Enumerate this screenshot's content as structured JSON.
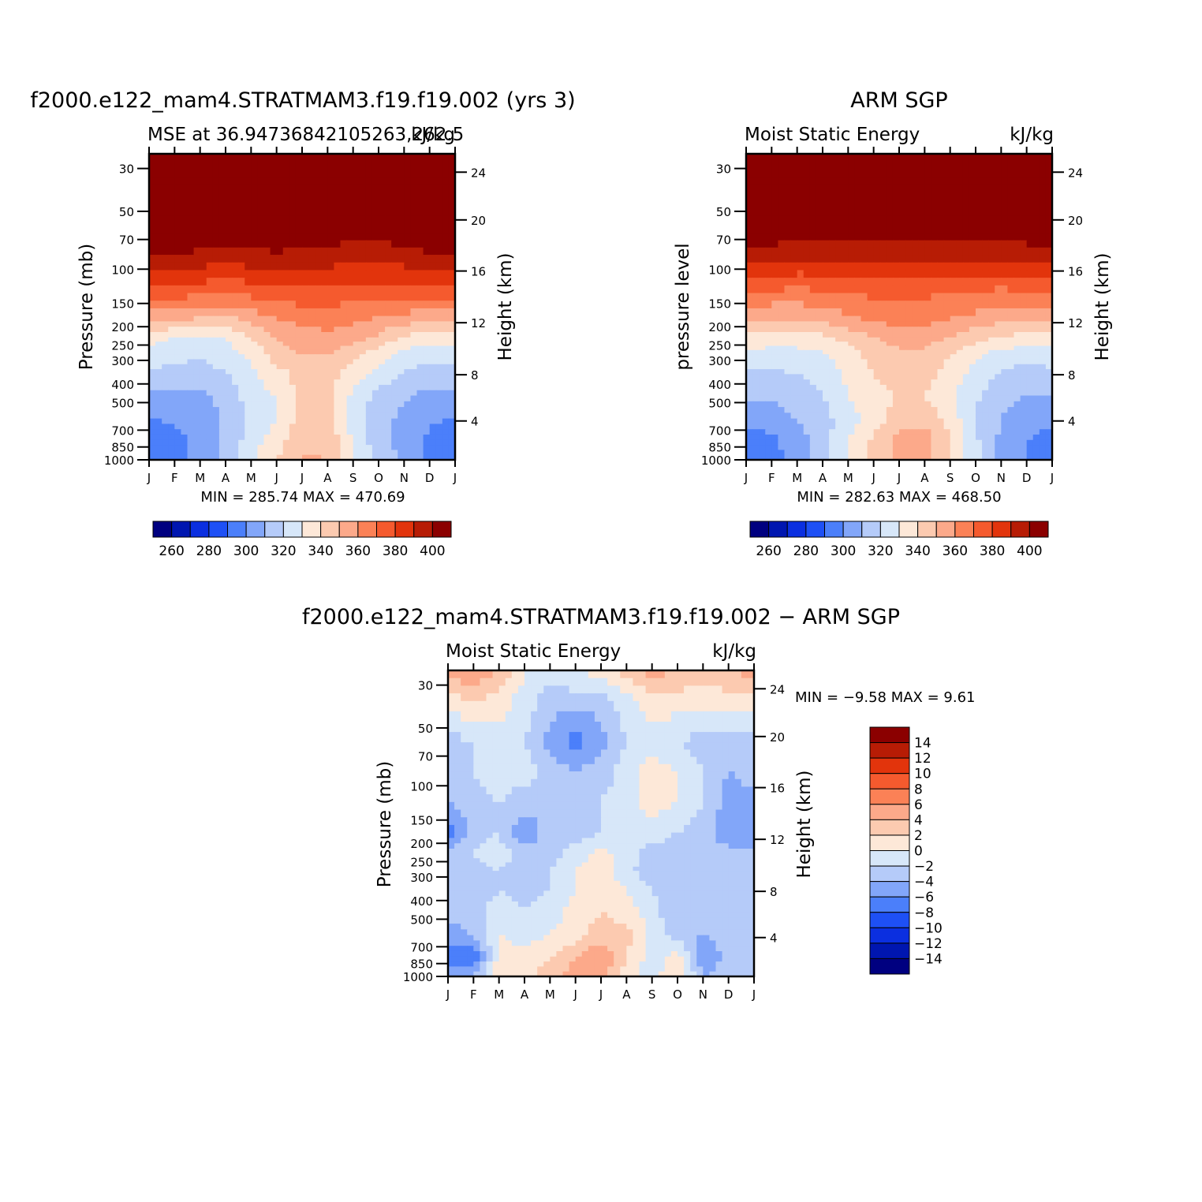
{
  "chart_data": [
    {
      "type": "heatmap",
      "title": "f2000.e122_mam4.STRATMAM3.f19.f19.002 (yrs 3)",
      "subtitle_left": "MSE at 36.94736842105263,262.5",
      "subtitle_right": "kJ/kg",
      "ylabel": "Pressure (mb)",
      "ylabel_right": "Height (km)",
      "stats": "MIN = 285.74 MAX = 470.69",
      "x": [
        "J",
        "F",
        "M",
        "A",
        "M",
        "J",
        "J",
        "A",
        "S",
        "O",
        "N",
        "D",
        "J"
      ],
      "y_ticks": [
        "30",
        "50",
        "70",
        "100",
        "150",
        "200",
        "250",
        "300",
        "400",
        "500",
        "700",
        "850",
        "1000"
      ],
      "y_ticks_right": [
        "24",
        "20",
        "16",
        "12",
        "8",
        "4"
      ],
      "colorbar_ticks": [
        "260",
        "280",
        "300",
        "320",
        "340",
        "360",
        "380",
        "400"
      ],
      "levels": [
        250,
        260,
        270,
        280,
        290,
        300,
        310,
        320,
        330,
        340,
        350,
        360,
        370,
        380,
        390,
        400
      ],
      "rows": [
        [
          420,
          420,
          420,
          420,
          420,
          420,
          420,
          420,
          420,
          420,
          420,
          420,
          420
        ],
        [
          420,
          420,
          420,
          420,
          420,
          420,
          420,
          420,
          420,
          420,
          420,
          420,
          420
        ],
        [
          404,
          402,
          398,
          397,
          398,
          399,
          398,
          396,
          395,
          395,
          397,
          400,
          404
        ],
        [
          392,
          391,
          388,
          387,
          388,
          389,
          388,
          387,
          386,
          386,
          387,
          389,
          392
        ],
        [
          372,
          371,
          368,
          366,
          368,
          370,
          370,
          369,
          368,
          368,
          368,
          370,
          372
        ],
        [
          346,
          345,
          342,
          340,
          346,
          352,
          355,
          356,
          354,
          350,
          348,
          346,
          345
        ],
        [
          323,
          320,
          318,
          320,
          330,
          341,
          345,
          347,
          345,
          338,
          328,
          324,
          323
        ],
        [
          316,
          314,
          312,
          316,
          322,
          335,
          340,
          340,
          334,
          324,
          316,
          314,
          315
        ],
        [
          308,
          306,
          305,
          309,
          318,
          326,
          334,
          335,
          325,
          318,
          309,
          306,
          307
        ],
        [
          298,
          297,
          298,
          304,
          314,
          321,
          333,
          333,
          318,
          306,
          301,
          297,
          297
        ],
        [
          290,
          291,
          294,
          301,
          314,
          319,
          334,
          334,
          316,
          303,
          298,
          291,
          290
        ],
        [
          286,
          287,
          293,
          301,
          315,
          325,
          338,
          338,
          318,
          304,
          297,
          288,
          286
        ],
        [
          285,
          287,
          294,
          303,
          318,
          330,
          341,
          340,
          320,
          306,
          297,
          288,
          285
        ]
      ]
    },
    {
      "type": "heatmap",
      "title": "ARM SGP",
      "subtitle_left": "Moist Static Energy",
      "subtitle_right": "kJ/kg",
      "ylabel": "pressure level",
      "ylabel_right": "Height (km)",
      "stats": "MIN = 282.63 MAX = 468.50",
      "x": [
        "J",
        "F",
        "M",
        "A",
        "M",
        "J",
        "J",
        "A",
        "S",
        "O",
        "N",
        "D",
        "J"
      ],
      "y_ticks": [
        "30",
        "50",
        "70",
        "100",
        "150",
        "200",
        "250",
        "300",
        "400",
        "500",
        "700",
        "850",
        "1000"
      ],
      "y_ticks_right": [
        "24",
        "20",
        "16",
        "12",
        "8",
        "4"
      ],
      "colorbar_ticks": [
        "260",
        "280",
        "300",
        "320",
        "340",
        "360",
        "380",
        "400"
      ],
      "levels": [
        250,
        260,
        270,
        280,
        290,
        300,
        310,
        320,
        330,
        340,
        350,
        360,
        370,
        380,
        390,
        400
      ],
      "rows": [
        [
          420,
          420,
          420,
          420,
          420,
          420,
          420,
          420,
          420,
          420,
          420,
          420,
          420
        ],
        [
          420,
          420,
          420,
          420,
          420,
          420,
          420,
          420,
          420,
          420,
          420,
          420,
          420
        ],
        [
          402,
          401,
          399,
          398,
          397,
          396,
          395,
          395,
          396,
          397,
          398,
          400,
          402
        ],
        [
          384,
          384,
          383,
          383,
          384,
          385,
          385,
          385,
          384,
          384,
          384,
          384,
          384
        ],
        [
          364,
          363,
          362,
          363,
          364,
          364,
          364,
          363,
          362,
          362,
          362,
          363,
          364
        ],
        [
          343,
          342,
          342,
          344,
          350,
          354,
          356,
          356,
          352,
          348,
          345,
          343,
          343
        ],
        [
          327,
          326,
          326,
          328,
          334,
          340,
          343,
          343,
          340,
          334,
          329,
          327,
          327
        ],
        [
          317,
          316,
          316,
          319,
          325,
          334,
          339,
          339,
          330,
          322,
          316,
          314,
          316
        ],
        [
          308,
          308,
          310,
          313,
          322,
          330,
          336,
          335,
          325,
          316,
          309,
          306,
          307
        ],
        [
          301,
          302,
          305,
          310,
          320,
          326,
          331,
          330,
          322,
          312,
          304,
          300,
          301
        ],
        [
          292,
          295,
          301,
          306,
          316,
          324,
          335,
          336,
          326,
          309,
          300,
          295,
          292
        ],
        [
          286,
          288,
          296,
          305,
          319,
          332,
          345,
          346,
          330,
          312,
          298,
          290,
          286
        ],
        [
          283,
          285,
          294,
          304,
          320,
          333,
          342,
          342,
          330,
          312,
          298,
          289,
          283
        ]
      ]
    },
    {
      "type": "heatmap",
      "title": "f2000.e122_mam4.STRATMAM3.f19.f19.002 − ARM SGP",
      "subtitle_left": "Moist Static Energy",
      "subtitle_right": "kJ/kg",
      "ylabel": "Pressure (mb)",
      "ylabel_right": "Height (km)",
      "stats": "MIN = −9.58 MAX = 9.61",
      "x": [
        "J",
        "F",
        "M",
        "A",
        "M",
        "J",
        "J",
        "A",
        "S",
        "O",
        "N",
        "D",
        "J"
      ],
      "y_ticks": [
        "30",
        "50",
        "70",
        "100",
        "150",
        "200",
        "250",
        "300",
        "400",
        "500",
        "700",
        "850",
        "1000"
      ],
      "y_ticks_right": [
        "24",
        "20",
        "16",
        "12",
        "8",
        "4"
      ],
      "colorbar_ticks": [
        "14",
        "12",
        "10",
        "8",
        "6",
        "4",
        "2",
        "0",
        "−2",
        "−4",
        "−6",
        "−8",
        "−10",
        "−12",
        "−14"
      ],
      "levels": [
        -14,
        -12,
        -10,
        -8,
        -6,
        -4,
        -2,
        0,
        2,
        4,
        6,
        8,
        10,
        12,
        14
      ],
      "rows": [
        [
          5,
          6,
          4,
          0,
          -1,
          0,
          1,
          3,
          5,
          4,
          3,
          4,
          5
        ],
        [
          1,
          2,
          1,
          -1,
          -3,
          -3,
          -3,
          -1,
          1,
          1,
          1,
          1,
          1
        ],
        [
          -3,
          -2,
          -1,
          -2,
          -5,
          -7,
          -5,
          -2,
          -1,
          -2,
          -3,
          -3,
          -3
        ],
        [
          -3,
          -2,
          -1,
          -1,
          -3,
          -4,
          -3,
          -1,
          1,
          0,
          -2,
          -4,
          -3
        ],
        [
          -4,
          -3,
          -2,
          -3,
          -3,
          -3,
          -2,
          -1,
          1,
          0,
          -2,
          -5,
          -5
        ],
        [
          -7,
          -3,
          -2,
          -6,
          -3,
          -3,
          -2,
          -2,
          -1,
          -2,
          -3,
          -6,
          -6
        ],
        [
          -3,
          -2,
          -1,
          -3,
          -3,
          -1,
          1,
          -1,
          -3,
          -3,
          -3,
          -3,
          -3
        ],
        [
          -3,
          -3,
          -2,
          -3,
          -2,
          0,
          1,
          -1,
          -4,
          -4,
          -3,
          -2,
          -2
        ],
        [
          -3,
          -3,
          -2,
          -3,
          -2,
          0,
          1,
          0,
          -2,
          -4,
          -3,
          -3,
          -3
        ],
        [
          -3,
          -3,
          -1,
          -2,
          -1,
          1,
          2,
          1,
          -1,
          -4,
          -3,
          -3,
          -3
        ],
        [
          -5,
          -4,
          0,
          -1,
          0,
          1,
          3,
          3,
          -1,
          -3,
          -4,
          -3,
          -3
        ],
        [
          -7,
          -8,
          1,
          1,
          2,
          4,
          6,
          2,
          -1,
          1,
          -6,
          -3,
          -3
        ],
        [
          -5,
          -4,
          1,
          1,
          3,
          5,
          5,
          1,
          -1,
          2,
          -4,
          -3,
          -3
        ]
      ]
    }
  ],
  "colors": {
    "abs_palette": [
      "#000080",
      "#0016B0",
      "#0B2FE0",
      "#1E50F5",
      "#4B7FFA",
      "#82A6F9",
      "#B5CBF9",
      "#D7E7F9",
      "#FDE8D8",
      "#FCCAB0",
      "#FCA98A",
      "#FB8156",
      "#F55A2E",
      "#E2340C",
      "#B71C05",
      "#8B0000"
    ],
    "diff_palette": [
      "#000080",
      "#0016B0",
      "#0B2FE0",
      "#1E50F5",
      "#4B7FFA",
      "#82A6F9",
      "#B5CBF9",
      "#D7E7F9",
      "#FDE8D8",
      "#FCCAB0",
      "#FCA98A",
      "#FB8156",
      "#F55A2E",
      "#E2340C",
      "#B71C05",
      "#8B0000"
    ]
  }
}
